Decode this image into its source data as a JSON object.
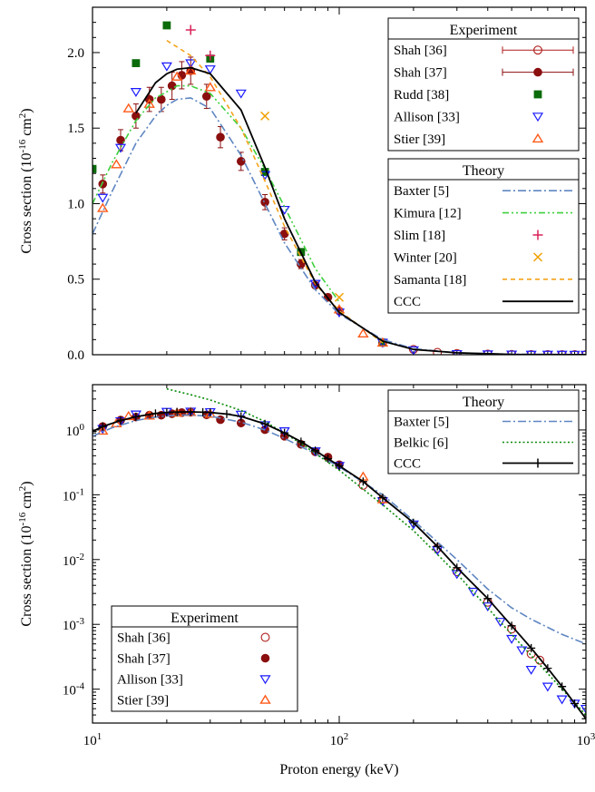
{
  "chart_data": [
    {
      "type": "scatter",
      "xscale": "log",
      "yscale": "linear",
      "xlim": [
        10,
        1000
      ],
      "ylim": [
        0,
        2.3
      ],
      "ylabel": "Cross section (10^-16 cm^2)",
      "ylabel_parts": {
        "base": "Cross section (10",
        "exp1": "-16",
        "mid": " cm",
        "exp2": "2",
        "end": ")"
      },
      "ytick_labels": [
        "0.0",
        "0.5",
        "1.0",
        "1.5",
        "2.0"
      ],
      "ytick_values": [
        0,
        0.5,
        1.0,
        1.5,
        2.0
      ],
      "legend_experiment": {
        "title": "Experiment",
        "placement": "top-right",
        "entries": [
          {
            "label": "Shah [36]",
            "series": 0
          },
          {
            "label": "Shah [37]",
            "series": 1
          },
          {
            "label": "Rudd [38]",
            "series": 2
          },
          {
            "label": "Allison [33]",
            "series": 3
          },
          {
            "label": "Stier [39]",
            "series": 4
          }
        ]
      },
      "legend_theory": {
        "title": "Theory",
        "placement": "right",
        "entries": [
          {
            "label": "Baxter [5]",
            "series": 5
          },
          {
            "label": "Kimura [12]",
            "series": 6
          },
          {
            "label": "Slim [18]",
            "series": 7
          },
          {
            "label": "Winter [20]",
            "series": 8
          },
          {
            "label": "Samanta [18]",
            "series": 9
          },
          {
            "label": "CCC",
            "series": 10
          }
        ]
      },
      "series": [
        {
          "name": "Shah [36]",
          "style": "marker",
          "marker": "open-circle",
          "color": "#b01c1c",
          "x": [
            150,
            200,
            250,
            300,
            400,
            500,
            600,
            700,
            800,
            900,
            1000
          ],
          "y": [
            0.08,
            0.035,
            0.015,
            0.008,
            0.004,
            0.002,
            0.001,
            0.001,
            0.0005,
            0.0005,
            0.0005
          ]
        },
        {
          "name": "Shah [37]",
          "style": "marker",
          "marker": "filled-circle",
          "color": "#8b0f0f",
          "errorbars": true,
          "x": [
            11,
            13,
            15,
            17,
            19,
            21,
            23,
            25,
            29,
            33,
            40,
            50,
            60,
            70,
            80,
            90,
            100
          ],
          "y": [
            1.13,
            1.42,
            1.58,
            1.69,
            1.69,
            1.78,
            1.85,
            1.88,
            1.71,
            1.44,
            1.28,
            1.01,
            0.8,
            0.6,
            0.46,
            0.38,
            0.29
          ],
          "yerr": [
            0.06,
            0.07,
            0.08,
            0.08,
            0.08,
            0.09,
            0.09,
            0.09,
            0.08,
            0.07,
            0.06,
            0.05,
            0.04,
            0.03,
            0.02,
            0.02,
            0.015
          ]
        },
        {
          "name": "Rudd [38]",
          "style": "marker",
          "marker": "filled-square",
          "color": "#0a6b0a",
          "x": [
            10,
            15,
            20,
            30,
            50,
            70,
            150
          ],
          "y": [
            1.23,
            1.93,
            2.18,
            1.96,
            1.21,
            0.68,
            0.08
          ]
        },
        {
          "name": "Allison [33]",
          "style": "marker",
          "marker": "down-triangle",
          "color": "#1a1aff",
          "x": [
            11,
            13,
            15,
            20,
            25,
            30,
            40,
            50,
            60,
            80,
            100,
            150,
            200,
            300,
            400,
            500,
            600,
            700,
            800,
            900,
            1000
          ],
          "y": [
            1.04,
            1.37,
            1.74,
            1.91,
            1.93,
            1.89,
            1.73,
            1.19,
            0.96,
            0.47,
            0.28,
            0.08,
            0.03,
            0.005,
            0.003,
            0.002,
            0.001,
            0.001,
            0.0008,
            0.0006,
            0.0005
          ]
        },
        {
          "name": "Stier [39]",
          "style": "marker",
          "marker": "up-triangle",
          "color": "#ff5a1a",
          "x": [
            11,
            12.5,
            14,
            17,
            22,
            25,
            30,
            100,
            125,
            150
          ],
          "y": [
            0.97,
            1.26,
            1.63,
            1.66,
            1.84,
            1.88,
            1.77,
            0.3,
            0.14,
            0.08
          ]
        },
        {
          "name": "Baxter [5]",
          "style": "dash-dot",
          "color": "#5f86c2",
          "x": [
            10,
            12,
            15,
            18,
            20,
            22,
            25,
            30,
            40,
            50,
            60,
            80,
            100,
            150,
            200,
            300,
            500,
            1000
          ],
          "y": [
            0.8,
            1.08,
            1.4,
            1.58,
            1.65,
            1.69,
            1.7,
            1.63,
            1.32,
            1.0,
            0.74,
            0.43,
            0.27,
            0.1,
            0.04,
            0.012,
            0.003,
            0.0005
          ]
        },
        {
          "name": "Kimura [12]",
          "style": "dash-dot-dot",
          "color": "#3fd03f",
          "x": [
            10,
            12,
            15,
            18,
            20,
            22,
            25,
            30,
            40,
            50,
            60,
            80,
            100
          ],
          "y": [
            1.0,
            1.27,
            1.55,
            1.7,
            1.74,
            1.78,
            1.78,
            1.73,
            1.5,
            1.23,
            0.98,
            0.57,
            0.35
          ]
        },
        {
          "name": "Slim [18]",
          "style": "marker",
          "marker": "plus",
          "color": "#d8235a",
          "x": [
            25,
            30
          ],
          "y": [
            2.15,
            1.98
          ]
        },
        {
          "name": "Winter [20]",
          "style": "marker",
          "marker": "cross",
          "color": "#f0a000",
          "x": [
            50,
            100
          ],
          "y": [
            1.58,
            0.38
          ]
        },
        {
          "name": "Samanta [18]",
          "style": "dashed",
          "color": "#f5a31a",
          "x": [
            20,
            25,
            30,
            40,
            50,
            60,
            80,
            100,
            150
          ],
          "y": [
            2.08,
            1.98,
            1.84,
            1.5,
            1.15,
            0.85,
            0.47,
            0.29,
            0.08
          ]
        },
        {
          "name": "CCC",
          "style": "solid",
          "color": "#000000",
          "x": [
            15,
            18,
            20,
            22,
            25,
            30,
            40,
            50,
            60,
            80,
            100,
            150,
            200,
            300,
            500,
            1000
          ],
          "y": [
            1.6,
            1.8,
            1.86,
            1.89,
            1.9,
            1.86,
            1.62,
            1.24,
            0.9,
            0.48,
            0.28,
            0.09,
            0.035,
            0.013,
            0.002,
            0.0003
          ]
        }
      ]
    },
    {
      "type": "scatter",
      "xscale": "log",
      "yscale": "log",
      "xlim": [
        10,
        1000
      ],
      "ylim": [
        3e-05,
        5
      ],
      "xlabel": "Proton energy (keV)",
      "ylabel": "Cross section (10^-16 cm^2)",
      "ylabel_parts": {
        "base": "Cross section (10",
        "exp1": "-16",
        "mid": " cm",
        "exp2": "2",
        "end": ")"
      },
      "xtick_labels": [
        {
          "base": "10",
          "exp": "1"
        },
        {
          "base": "10",
          "exp": "2"
        },
        {
          "base": "10",
          "exp": "3"
        }
      ],
      "xtick_values": [
        10,
        100,
        1000
      ],
      "ytick_labels": [
        {
          "base": "10",
          "exp": "0"
        },
        {
          "base": "10",
          "exp": "-1"
        },
        {
          "base": "10",
          "exp": "-2"
        },
        {
          "base": "10",
          "exp": "-3"
        },
        {
          "base": "10",
          "exp": "-4"
        }
      ],
      "ytick_values": [
        1,
        0.1,
        0.01,
        0.001,
        0.0001
      ],
      "legend_theory": {
        "title": "Theory",
        "placement": "top-right",
        "entries": [
          {
            "label": "Baxter [5]",
            "series": 4
          },
          {
            "label": "Belkic [6]",
            "series": 5
          },
          {
            "label": "CCC",
            "series": 6
          }
        ]
      },
      "legend_experiment": {
        "title": "Experiment",
        "placement": "bottom-left",
        "entries": [
          {
            "label": "Shah [36]",
            "series": 0
          },
          {
            "label": "Shah [37]",
            "series": 1
          },
          {
            "label": "Allison [33]",
            "series": 2
          },
          {
            "label": "Stier [39]",
            "series": 3
          }
        ]
      },
      "series": [
        {
          "name": "Shah [36]",
          "style": "marker",
          "marker": "open-circle",
          "color": "#b01c1c",
          "x": [
            125,
            150,
            250,
            300,
            400,
            500,
            600,
            650
          ],
          "y": [
            0.14,
            0.085,
            0.015,
            0.0065,
            0.0022,
            0.00085,
            0.00035,
            0.00028
          ]
        },
        {
          "name": "Shah [37]",
          "style": "marker",
          "marker": "filled-circle",
          "color": "#8b0f0f",
          "x": [
            11,
            13,
            15,
            17,
            19,
            21,
            23,
            25,
            29,
            33,
            40,
            50,
            60,
            70,
            80,
            90,
            100
          ],
          "y": [
            1.13,
            1.42,
            1.58,
            1.69,
            1.69,
            1.78,
            1.85,
            1.88,
            1.71,
            1.44,
            1.28,
            1.01,
            0.8,
            0.6,
            0.46,
            0.38,
            0.29
          ]
        },
        {
          "name": "Allison [33]",
          "style": "marker",
          "marker": "down-triangle",
          "color": "#1a1aff",
          "x": [
            11,
            13,
            15,
            20,
            25,
            30,
            40,
            50,
            60,
            80,
            100,
            150,
            200,
            250,
            300,
            350,
            400,
            450,
            500,
            550,
            600,
            700,
            800,
            900,
            1000
          ],
          "y": [
            1.04,
            1.37,
            1.74,
            1.91,
            1.93,
            1.89,
            1.73,
            1.19,
            0.96,
            0.47,
            0.28,
            0.08,
            0.035,
            0.014,
            0.006,
            0.0032,
            0.0019,
            0.0011,
            0.0006,
            0.0004,
            0.0002,
            0.00011,
            7e-05,
            6e-05,
            5e-05
          ]
        },
        {
          "name": "Stier [39]",
          "style": "marker",
          "marker": "up-triangle",
          "color": "#ff5a1a",
          "x": [
            11,
            12.5,
            14,
            17,
            22,
            25,
            30,
            125,
            150
          ],
          "y": [
            0.97,
            1.26,
            1.63,
            1.66,
            1.84,
            1.88,
            1.77,
            0.19,
            0.085
          ]
        },
        {
          "name": "Baxter [5]",
          "style": "dash-dot",
          "color": "#5f86c2",
          "x": [
            10,
            12,
            15,
            18,
            20,
            22,
            25,
            30,
            40,
            50,
            60,
            80,
            100,
            150,
            200,
            300,
            400,
            500,
            600,
            800,
            1000
          ],
          "y": [
            0.8,
            1.08,
            1.4,
            1.58,
            1.65,
            1.69,
            1.7,
            1.63,
            1.32,
            1.0,
            0.74,
            0.43,
            0.27,
            0.1,
            0.04,
            0.01,
            0.0035,
            0.0018,
            0.0012,
            0.0007,
            0.0005
          ]
        },
        {
          "name": "Belkic [6]",
          "style": "dotted",
          "color": "#0a8a0a",
          "x": [
            20,
            25,
            30,
            40,
            50,
            70,
            100,
            150,
            200,
            300,
            500,
            1000
          ],
          "y": [
            4.3,
            3.5,
            2.9,
            2.0,
            1.35,
            0.62,
            0.24,
            0.07,
            0.028,
            0.006,
            0.0007,
            4e-05
          ]
        },
        {
          "name": "CCC",
          "style": "solid-plus",
          "color": "#000000",
          "x": [
            10,
            11,
            13,
            15,
            18,
            20,
            22,
            25,
            28,
            30,
            35,
            40,
            50,
            60,
            70,
            80,
            90,
            100,
            125,
            150,
            200,
            250,
            300,
            400,
            500,
            600,
            700,
            800,
            900,
            1000
          ],
          "y": [
            0.95,
            1.13,
            1.4,
            1.6,
            1.8,
            1.86,
            1.89,
            1.9,
            1.88,
            1.86,
            1.76,
            1.62,
            1.24,
            0.9,
            0.66,
            0.48,
            0.36,
            0.28,
            0.16,
            0.09,
            0.037,
            0.016,
            0.0075,
            0.0025,
            0.00095,
            0.00043,
            0.00021,
            0.00011,
            6e-05,
            3.5e-05
          ]
        }
      ]
    }
  ]
}
